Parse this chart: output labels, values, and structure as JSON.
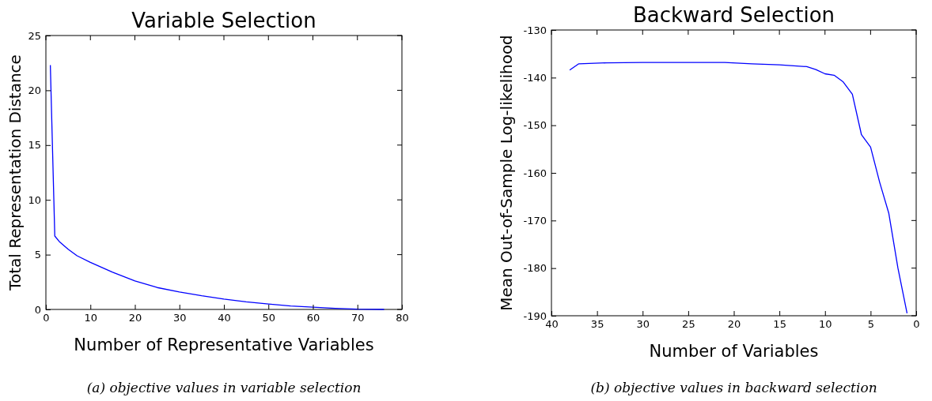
{
  "chart_data": [
    {
      "type": "line",
      "title": "Variable Selection",
      "xlabel": "Number of Representative Variables",
      "ylabel": "Total Representation Distance",
      "annotations": [
        "(a) objective values in variable selection"
      ],
      "xlim": [
        0,
        80
      ],
      "xticks": [
        0,
        10,
        20,
        30,
        40,
        50,
        60,
        70,
        80
      ],
      "ylim": [
        0,
        25
      ],
      "yticks": [
        0,
        5,
        10,
        15,
        20,
        25
      ],
      "grid": false,
      "series": [
        {
          "color": "#0000ff",
          "x": [
            1,
            2,
            3,
            5,
            7,
            10,
            15,
            20,
            25,
            30,
            35,
            40,
            45,
            50,
            55,
            60,
            65,
            70,
            76
          ],
          "values": [
            22.3,
            6.7,
            6.2,
            5.5,
            4.9,
            4.3,
            3.4,
            2.6,
            2.0,
            1.6,
            1.25,
            0.95,
            0.7,
            0.5,
            0.32,
            0.2,
            0.1,
            0.03,
            0
          ]
        }
      ]
    },
    {
      "type": "line",
      "title": "Backward Selection",
      "xlabel": "Number of Variables",
      "ylabel": "Mean Out-of-Sample Log-likelihood",
      "annotations": [
        "(b) objective values in backward selection"
      ],
      "xlim": [
        40,
        0
      ],
      "xticks": [
        40,
        35,
        30,
        25,
        20,
        15,
        10,
        5,
        0
      ],
      "ylim": [
        -190,
        -130
      ],
      "yticks": [
        -190,
        -180,
        -170,
        -160,
        -150,
        -140,
        -130
      ],
      "grid": false,
      "series": [
        {
          "color": "#0000ff",
          "x": [
            38,
            37,
            34,
            30,
            25,
            21,
            18,
            15,
            12,
            11,
            10,
            9,
            8,
            7,
            6,
            5,
            4,
            3,
            2,
            1
          ],
          "values": [
            -138.4,
            -137.1,
            -136.9,
            -136.8,
            -136.8,
            -136.8,
            -137.1,
            -137.3,
            -137.7,
            -138.3,
            -139.2,
            -139.5,
            -140.9,
            -143.5,
            -152,
            -154.6,
            -162,
            -168.5,
            -180,
            -189.5
          ]
        }
      ]
    }
  ]
}
